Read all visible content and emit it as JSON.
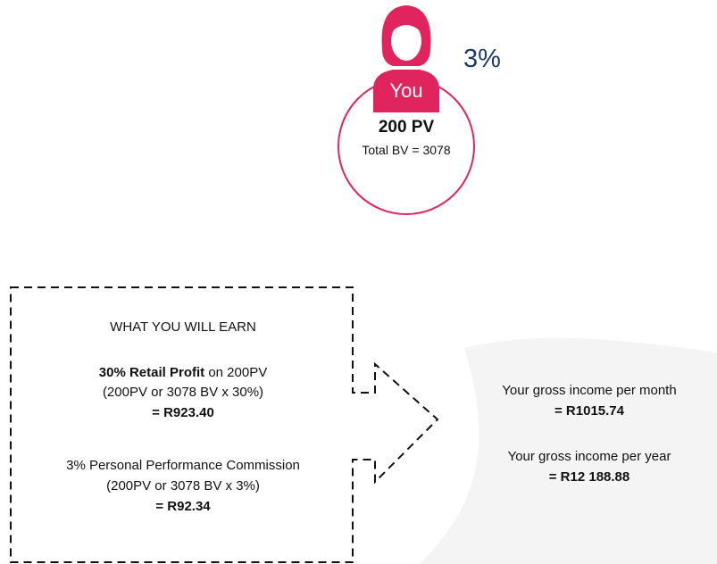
{
  "profile": {
    "label": "You",
    "rate": "3%",
    "pv": "200 PV",
    "total_bv": "Total BV = 3078"
  },
  "earnings": {
    "heading": "WHAT YOU WILL EARN",
    "retail": {
      "title": "30% Retail Profit",
      "suffix": " on 200PV",
      "formula": "(200PV or 3078 BV x 30%)",
      "result": "= R923.40"
    },
    "commission": {
      "title": "3% Personal Performance Commission",
      "formula": "(200PV or 3078 BV x 3%)",
      "result": "= R92.34"
    }
  },
  "income": {
    "month_label": "Your gross income per month",
    "month_value": "= R1015.74",
    "year_label": "Your gross income per year",
    "year_value": "= R12 188.88"
  }
}
